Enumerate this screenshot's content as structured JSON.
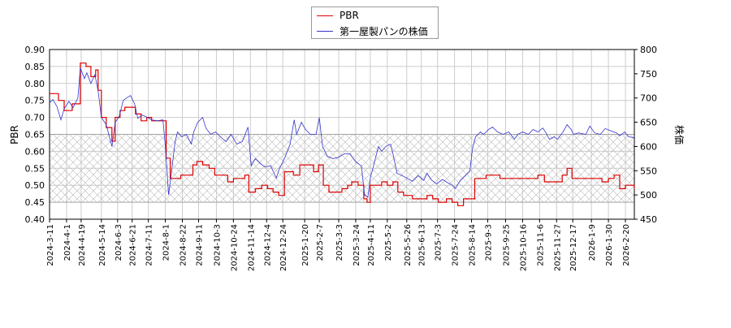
{
  "chart_data": {
    "type": "line",
    "title": "",
    "xlabel": "",
    "ylabel": "PBR",
    "y2label": "株価",
    "ylim": [
      0.4,
      0.9
    ],
    "y2lim": [
      450,
      800
    ],
    "yticks": [
      "0.40",
      "0.45",
      "0.50",
      "0.55",
      "0.60",
      "0.65",
      "0.70",
      "0.75",
      "0.80",
      "0.85",
      "0.90"
    ],
    "y2ticks": [
      "450",
      "500",
      "550",
      "600",
      "650",
      "700",
      "750",
      "800"
    ],
    "x_start": "2024-03-11",
    "x_end": "2026-03-03",
    "xticks": [
      "2024-3-11",
      "2024-4-1",
      "2024-4-19",
      "2024-5-14",
      "2024-6-3",
      "2024-6-21",
      "2024-7-11",
      "2024-8-1",
      "2024-8-22",
      "2024-9-11",
      "2024-10-3",
      "2024-10-24",
      "2024-11-14",
      "2024-12-4",
      "2024-12-24",
      "2025-1-20",
      "2025-2-7",
      "2025-3-3",
      "2025-3-24",
      "2025-4-11",
      "2025-5-2",
      "2025-5-26",
      "2025-6-13",
      "2025-7-3",
      "2025-7-24",
      "2025-8-14",
      "2025-9-3",
      "2025-9-25",
      "2025-10-16",
      "2025-11-6",
      "2025-11-27",
      "2025-12-17",
      "2026-1-9",
      "2026-1-30",
      "2026-2-20"
    ],
    "shaded_band": [
      0.45,
      0.65
    ],
    "grid": true,
    "legend_placement": "top-center",
    "series": [
      {
        "name": "PBR",
        "axis": "left",
        "color": "#dd0000",
        "points": [
          [
            "2024-03-11",
            0.77
          ],
          [
            "2024-03-18",
            0.77
          ],
          [
            "2024-03-22",
            0.75
          ],
          [
            "2024-03-29",
            0.72
          ],
          [
            "2024-04-03",
            0.72
          ],
          [
            "2024-04-08",
            0.74
          ],
          [
            "2024-04-15",
            0.74
          ],
          [
            "2024-04-18",
            0.86
          ],
          [
            "2024-04-25",
            0.85
          ],
          [
            "2024-05-01",
            0.82
          ],
          [
            "2024-05-07",
            0.84
          ],
          [
            "2024-05-10",
            0.78
          ],
          [
            "2024-05-14",
            0.7
          ],
          [
            "2024-05-20",
            0.67
          ],
          [
            "2024-05-27",
            0.63
          ],
          [
            "2024-05-31",
            0.7
          ],
          [
            "2024-06-06",
            0.72
          ],
          [
            "2024-06-12",
            0.73
          ],
          [
            "2024-06-20",
            0.73
          ],
          [
            "2024-06-25",
            0.71
          ],
          [
            "2024-07-02",
            0.69
          ],
          [
            "2024-07-09",
            0.7
          ],
          [
            "2024-07-15",
            0.69
          ],
          [
            "2024-07-22",
            0.69
          ],
          [
            "2024-07-30",
            0.69
          ],
          [
            "2024-08-02",
            0.58
          ],
          [
            "2024-08-07",
            0.52
          ],
          [
            "2024-08-14",
            0.52
          ],
          [
            "2024-08-20",
            0.53
          ],
          [
            "2024-08-28",
            0.53
          ],
          [
            "2024-09-04",
            0.56
          ],
          [
            "2024-09-09",
            0.57
          ],
          [
            "2024-09-16",
            0.56
          ],
          [
            "2024-09-24",
            0.55
          ],
          [
            "2024-10-01",
            0.53
          ],
          [
            "2024-10-10",
            0.53
          ],
          [
            "2024-10-17",
            0.51
          ],
          [
            "2024-10-24",
            0.52
          ],
          [
            "2024-11-01",
            0.52
          ],
          [
            "2024-11-07",
            0.53
          ],
          [
            "2024-11-12",
            0.48
          ],
          [
            "2024-11-20",
            0.49
          ],
          [
            "2024-11-28",
            0.5
          ],
          [
            "2024-12-05",
            0.49
          ],
          [
            "2024-12-12",
            0.48
          ],
          [
            "2024-12-19",
            0.47
          ],
          [
            "2024-12-26",
            0.54
          ],
          [
            "2025-01-06",
            0.53
          ],
          [
            "2025-01-14",
            0.56
          ],
          [
            "2025-01-24",
            0.56
          ],
          [
            "2025-01-31",
            0.54
          ],
          [
            "2025-02-06",
            0.56
          ],
          [
            "2025-02-12",
            0.5
          ],
          [
            "2025-02-19",
            0.48
          ],
          [
            "2025-02-28",
            0.48
          ],
          [
            "2025-03-07",
            0.49
          ],
          [
            "2025-03-14",
            0.5
          ],
          [
            "2025-03-19",
            0.51
          ],
          [
            "2025-03-27",
            0.5
          ],
          [
            "2025-04-03",
            0.46
          ],
          [
            "2025-04-07",
            0.45
          ],
          [
            "2025-04-11",
            0.5
          ],
          [
            "2025-04-18",
            0.5
          ],
          [
            "2025-04-25",
            0.51
          ],
          [
            "2025-05-02",
            0.5
          ],
          [
            "2025-05-09",
            0.51
          ],
          [
            "2025-05-15",
            0.48
          ],
          [
            "2025-05-22",
            0.47
          ],
          [
            "2025-06-02",
            0.46
          ],
          [
            "2025-06-13",
            0.46
          ],
          [
            "2025-06-20",
            0.47
          ],
          [
            "2025-06-27",
            0.46
          ],
          [
            "2025-07-04",
            0.45
          ],
          [
            "2025-07-14",
            0.46
          ],
          [
            "2025-07-21",
            0.45
          ],
          [
            "2025-07-28",
            0.44
          ],
          [
            "2025-08-04",
            0.46
          ],
          [
            "2025-08-13",
            0.46
          ],
          [
            "2025-08-18",
            0.52
          ],
          [
            "2025-08-26",
            0.52
          ],
          [
            "2025-09-01",
            0.53
          ],
          [
            "2025-09-10",
            0.53
          ],
          [
            "2025-09-18",
            0.52
          ],
          [
            "2025-09-26",
            0.52
          ],
          [
            "2025-10-06",
            0.52
          ],
          [
            "2025-10-16",
            0.52
          ],
          [
            "2025-10-27",
            0.52
          ],
          [
            "2025-11-04",
            0.53
          ],
          [
            "2025-11-12",
            0.51
          ],
          [
            "2025-11-21",
            0.51
          ],
          [
            "2025-11-28",
            0.51
          ],
          [
            "2025-12-04",
            0.53
          ],
          [
            "2025-12-10",
            0.55
          ],
          [
            "2025-12-16",
            0.52
          ],
          [
            "2025-12-24",
            0.52
          ],
          [
            "2026-01-05",
            0.52
          ],
          [
            "2026-01-14",
            0.52
          ],
          [
            "2026-01-22",
            0.51
          ],
          [
            "2026-01-30",
            0.52
          ],
          [
            "2026-02-06",
            0.53
          ],
          [
            "2026-02-13",
            0.49
          ],
          [
            "2026-02-20",
            0.5
          ],
          [
            "2026-03-03",
            0.49
          ]
        ]
      },
      {
        "name": "第一屋製パンの株価",
        "axis": "right",
        "color": "#3333cc",
        "points": [
          [
            "2024-03-11",
            690
          ],
          [
            "2024-03-15",
            697
          ],
          [
            "2024-03-20",
            683
          ],
          [
            "2024-03-25",
            655
          ],
          [
            "2024-03-29",
            678
          ],
          [
            "2024-04-04",
            693
          ],
          [
            "2024-04-09",
            680
          ],
          [
            "2024-04-15",
            700
          ],
          [
            "2024-04-18",
            762
          ],
          [
            "2024-04-23",
            740
          ],
          [
            "2024-04-26",
            752
          ],
          [
            "2024-05-01",
            730
          ],
          [
            "2024-05-06",
            748
          ],
          [
            "2024-05-10",
            715
          ],
          [
            "2024-05-14",
            660
          ],
          [
            "2024-05-20",
            645
          ],
          [
            "2024-05-27",
            600
          ],
          [
            "2024-05-31",
            650
          ],
          [
            "2024-06-05",
            662
          ],
          [
            "2024-06-10",
            695
          ],
          [
            "2024-06-14",
            700
          ],
          [
            "2024-06-19",
            705
          ],
          [
            "2024-06-24",
            688
          ],
          [
            "2024-06-28",
            658
          ],
          [
            "2024-07-03",
            665
          ],
          [
            "2024-07-10",
            660
          ],
          [
            "2024-07-15",
            655
          ],
          [
            "2024-07-22",
            653
          ],
          [
            "2024-07-29",
            655
          ],
          [
            "2024-08-01",
            600
          ],
          [
            "2024-08-05",
            500
          ],
          [
            "2024-08-08",
            540
          ],
          [
            "2024-08-13",
            610
          ],
          [
            "2024-08-16",
            630
          ],
          [
            "2024-08-21",
            620
          ],
          [
            "2024-08-27",
            625
          ],
          [
            "2024-09-02",
            605
          ],
          [
            "2024-09-05",
            630
          ],
          [
            "2024-09-10",
            650
          ],
          [
            "2024-09-16",
            660
          ],
          [
            "2024-09-20",
            638
          ],
          [
            "2024-09-26",
            625
          ],
          [
            "2024-10-02",
            630
          ],
          [
            "2024-10-08",
            620
          ],
          [
            "2024-10-15",
            610
          ],
          [
            "2024-10-21",
            625
          ],
          [
            "2024-10-28",
            605
          ],
          [
            "2024-11-04",
            610
          ],
          [
            "2024-11-11",
            640
          ],
          [
            "2024-11-15",
            560
          ],
          [
            "2024-11-20",
            575
          ],
          [
            "2024-11-26",
            565
          ],
          [
            "2024-12-02",
            558
          ],
          [
            "2024-12-09",
            560
          ],
          [
            "2024-12-16",
            535
          ],
          [
            "2024-12-20",
            555
          ],
          [
            "2024-12-26",
            575
          ],
          [
            "2025-01-02",
            605
          ],
          [
            "2025-01-07",
            655
          ],
          [
            "2025-01-10",
            625
          ],
          [
            "2025-01-16",
            650
          ],
          [
            "2025-01-21",
            635
          ],
          [
            "2025-01-27",
            625
          ],
          [
            "2025-02-03",
            625
          ],
          [
            "2025-02-07",
            660
          ],
          [
            "2025-02-11",
            600
          ],
          [
            "2025-02-17",
            580
          ],
          [
            "2025-02-24",
            575
          ],
          [
            "2025-03-03",
            578
          ],
          [
            "2025-03-10",
            585
          ],
          [
            "2025-03-17",
            585
          ],
          [
            "2025-03-24",
            568
          ],
          [
            "2025-03-31",
            560
          ],
          [
            "2025-04-04",
            500
          ],
          [
            "2025-04-08",
            495
          ],
          [
            "2025-04-11",
            535
          ],
          [
            "2025-04-15",
            560
          ],
          [
            "2025-04-21",
            600
          ],
          [
            "2025-04-25",
            590
          ],
          [
            "2025-04-30",
            600
          ],
          [
            "2025-05-06",
            605
          ],
          [
            "2025-05-09",
            585
          ],
          [
            "2025-05-14",
            545
          ],
          [
            "2025-05-20",
            540
          ],
          [
            "2025-05-26",
            535
          ],
          [
            "2025-06-02",
            528
          ],
          [
            "2025-06-09",
            540
          ],
          [
            "2025-06-16",
            530
          ],
          [
            "2025-06-20",
            545
          ],
          [
            "2025-06-26",
            530
          ],
          [
            "2025-07-02",
            523
          ],
          [
            "2025-07-09",
            532
          ],
          [
            "2025-07-15",
            526
          ],
          [
            "2025-07-21",
            520
          ],
          [
            "2025-07-25",
            513
          ],
          [
            "2025-07-31",
            530
          ],
          [
            "2025-08-06",
            540
          ],
          [
            "2025-08-12",
            550
          ],
          [
            "2025-08-15",
            595
          ],
          [
            "2025-08-19",
            620
          ],
          [
            "2025-08-25",
            630
          ],
          [
            "2025-08-29",
            625
          ],
          [
            "2025-09-04",
            635
          ],
          [
            "2025-09-09",
            640
          ],
          [
            "2025-09-15",
            630
          ],
          [
            "2025-09-22",
            625
          ],
          [
            "2025-09-29",
            630
          ],
          [
            "2025-10-06",
            615
          ],
          [
            "2025-10-10",
            625
          ],
          [
            "2025-10-16",
            630
          ],
          [
            "2025-10-23",
            625
          ],
          [
            "2025-10-29",
            635
          ],
          [
            "2025-11-04",
            630
          ],
          [
            "2025-11-10",
            638
          ],
          [
            "2025-11-14",
            628
          ],
          [
            "2025-11-18",
            615
          ],
          [
            "2025-11-24",
            620
          ],
          [
            "2025-11-28",
            615
          ],
          [
            "2025-12-05",
            630
          ],
          [
            "2025-12-10",
            645
          ],
          [
            "2025-12-15",
            635
          ],
          [
            "2025-12-18",
            625
          ],
          [
            "2025-12-24",
            628
          ],
          [
            "2026-01-02",
            625
          ],
          [
            "2026-01-07",
            642
          ],
          [
            "2026-01-13",
            628
          ],
          [
            "2026-01-20",
            625
          ],
          [
            "2026-01-26",
            637
          ],
          [
            "2026-02-02",
            632
          ],
          [
            "2026-02-09",
            628
          ],
          [
            "2026-02-13",
            622
          ],
          [
            "2026-02-19",
            630
          ],
          [
            "2026-02-24",
            620
          ],
          [
            "2026-03-03",
            618
          ]
        ]
      }
    ]
  }
}
